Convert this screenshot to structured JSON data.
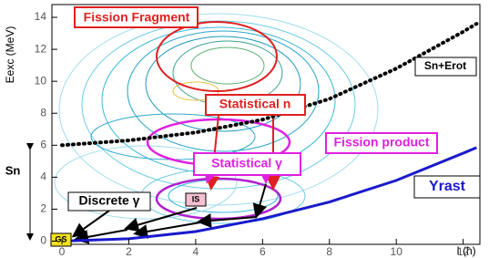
{
  "chart_data": {
    "type": "line",
    "x_label": "I (ħ)",
    "y_label": "Eexc (MeV)",
    "xlim": [
      -0.3,
      12.5
    ],
    "ylim": [
      -0.2,
      14.8
    ],
    "xticks": [
      0,
      2,
      4,
      6,
      8,
      10,
      12
    ],
    "yticks": [
      0,
      2,
      4,
      6,
      8,
      10,
      12,
      14
    ],
    "series": [
      {
        "name": "Sn+Erot",
        "color": "#000000",
        "style": "dotted",
        "x": [
          0,
          2,
          4,
          6,
          8,
          10,
          12,
          12.4
        ],
        "values": [
          6,
          6.3,
          6.8,
          7.6,
          8.9,
          10.8,
          13.1,
          13.6
        ]
      },
      {
        "name": "Yrast",
        "color": "#1a1acc",
        "style": "solid",
        "x": [
          0,
          2,
          4,
          6,
          8,
          10,
          12,
          12.4
        ],
        "values": [
          0,
          0.15,
          0.6,
          1.4,
          2.45,
          3.8,
          5.5,
          5.85
        ]
      }
    ],
    "annotations": {
      "fission_fragment": "Fission Fragment",
      "statistical_n": "Statistical n",
      "fission_product": "Fission product",
      "statistical_gamma": "Statistical γ",
      "discrete_gamma": "Discrete γ",
      "is": "IS",
      "gs": "GS",
      "sn": "Sn"
    }
  }
}
